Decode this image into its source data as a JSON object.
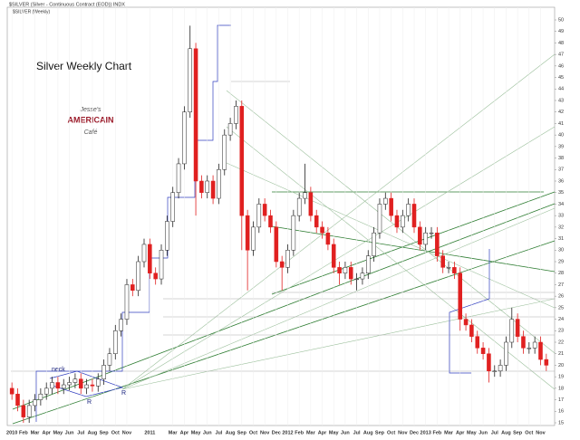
{
  "chart_data": {
    "type": "candlestick",
    "title": "$SILVER (Silver - Continuous Contract (EOD)) INDX",
    "subtitle": "$SILVER (Weekly)",
    "annotations": [
      "Silver Weekly Chart",
      "neck",
      "R",
      "R",
      "Jesse's",
      "AMERICAIN",
      "Café"
    ],
    "categories": [
      "2010",
      null,
      "Feb",
      null,
      "Mar",
      null,
      "Apr",
      null,
      "May",
      null,
      "Jun",
      null,
      "Jul",
      null,
      "Aug",
      null,
      "Sep",
      null,
      "Oct",
      null,
      "Nov",
      null,
      null,
      null,
      "2011",
      null,
      null,
      null,
      "Mar",
      null,
      "Apr",
      null,
      "May",
      null,
      "Jun",
      null,
      "Jul",
      null,
      "Aug",
      null,
      "Sep",
      null,
      "Oct",
      null,
      "Nov",
      null,
      "Dec",
      null,
      "2012",
      null,
      "Feb",
      null,
      "Mar",
      null,
      "Apr",
      null,
      "May",
      null,
      "Jun",
      null,
      "Jul",
      null,
      "Aug",
      null,
      "Sep",
      null,
      "Oct",
      null,
      "Nov",
      null,
      "Dec",
      null,
      "2013",
      null,
      "Feb",
      null,
      "Mar",
      null,
      "Apr",
      null,
      "May",
      null,
      "Jun",
      null,
      "Jul",
      null,
      "Aug",
      null,
      "Sep",
      null,
      "Oct",
      null,
      "Nov",
      null
    ],
    "open": [
      18,
      17.5,
      16.5,
      15.5,
      16.5,
      17,
      17.5,
      18,
      18.5,
      18,
      18.3,
      18.5,
      18.8,
      18,
      18.3,
      18.2,
      18.8,
      20,
      21,
      23,
      24,
      27,
      26.5,
      29,
      30.5,
      28,
      27.5,
      30,
      32.5,
      35,
      37.5,
      42,
      47.5,
      36,
      35,
      36,
      34.5,
      37,
      40,
      41,
      42.5,
      33,
      30,
      32,
      34,
      33,
      32,
      29,
      28.5,
      30,
      33,
      34.5,
      35,
      33,
      32,
      31.5,
      30.5,
      28.5,
      28,
      28.5,
      27.5,
      27.5,
      28,
      29.5,
      31.5,
      34,
      34.5,
      33,
      32,
      33,
      34,
      32,
      30.5,
      31.5,
      31.5,
      29.5,
      28.5,
      28.5,
      28,
      24,
      23.5,
      22.5,
      21.5,
      21,
      19.5,
      19.5,
      20,
      22,
      24,
      22.5,
      21.5,
      21.5,
      22,
      20.5
    ],
    "high": [
      18.5,
      18,
      17,
      17,
      17.5,
      18,
      18.5,
      19,
      19,
      18.8,
      19,
      19.3,
      19.3,
      18.8,
      18.8,
      19.3,
      20.5,
      21.5,
      23.5,
      24.5,
      27.5,
      27.5,
      29.5,
      31,
      31,
      28.5,
      30.5,
      33,
      35.5,
      38,
      42.5,
      49.5,
      48,
      36.5,
      36.5,
      36.5,
      37.5,
      40.5,
      41.5,
      43,
      43,
      33.5,
      32.5,
      34.5,
      34.5,
      33.5,
      32.5,
      29.5,
      30.5,
      33.5,
      35,
      37.5,
      35.5,
      33.5,
      32.5,
      32,
      31,
      29,
      29,
      29,
      28,
      28.5,
      30,
      32,
      34.5,
      35,
      35,
      33.5,
      33.5,
      34.5,
      34.5,
      32.5,
      32,
      32,
      32,
      30,
      29,
      29,
      28.5,
      24.5,
      24,
      23,
      22,
      21.5,
      20,
      20.5,
      22.5,
      25,
      24.5,
      23,
      22,
      22.5,
      22.5,
      21
    ],
    "low": [
      17,
      16,
      15,
      15,
      16,
      16.5,
      17,
      17.5,
      17.5,
      17.5,
      17.8,
      18,
      17.5,
      17.5,
      17.7,
      17.7,
      18.3,
      19.5,
      20.5,
      22.5,
      23.5,
      26,
      26,
      28.5,
      27.5,
      27,
      27,
      29.5,
      32,
      34.5,
      37,
      41.5,
      33,
      34.5,
      34.5,
      34,
      34,
      36.5,
      39.5,
      40.5,
      30,
      26.5,
      29.5,
      31.5,
      32.5,
      31.5,
      28.5,
      26.5,
      28,
      29.5,
      32.5,
      34,
      32.5,
      31.5,
      31,
      30,
      28,
      27,
      27.5,
      27,
      26.5,
      27,
      27.5,
      29,
      31,
      33.5,
      32.5,
      31.5,
      31.5,
      32.5,
      31.5,
      30,
      30,
      31,
      29,
      28,
      28,
      27.5,
      23,
      23,
      22,
      21,
      20.5,
      18.5,
      19,
      19,
      19.5,
      21.5,
      22,
      21,
      21,
      21,
      20,
      19.5
    ],
    "close": [
      17.5,
      16.5,
      15.5,
      16.5,
      17,
      17.5,
      18,
      18.5,
      18,
      18.3,
      18.5,
      18.8,
      18,
      18.3,
      18.2,
      18.8,
      20,
      21,
      23,
      24,
      27,
      26.5,
      29,
      30.5,
      28,
      27.5,
      30,
      32.5,
      35,
      37.5,
      42,
      47.5,
      36,
      35,
      36,
      34.5,
      37,
      40,
      41,
      42.5,
      33,
      30,
      32,
      34,
      33,
      32,
      29,
      28.5,
      30,
      33,
      34.5,
      35,
      33,
      32,
      31.5,
      30.5,
      28.5,
      28,
      28.5,
      27.5,
      27.5,
      28,
      29.5,
      31.5,
      34,
      34.5,
      33,
      32,
      33,
      34,
      32,
      30.5,
      31.5,
      31.5,
      29.5,
      28.5,
      28.5,
      28,
      24,
      23.5,
      22.5,
      21.5,
      21,
      19.5,
      19.5,
      20,
      22,
      24,
      22.5,
      21.5,
      21.5,
      22,
      20.5,
      20
    ],
    "up_color": "#ffffff",
    "down_color": "#e02020",
    "ylim": [
      15,
      50
    ],
    "yticks": [
      15,
      16,
      17,
      18,
      19,
      20,
      21,
      22,
      23,
      24,
      25,
      26,
      27,
      28,
      29,
      30,
      31,
      32,
      33,
      34,
      35,
      36,
      37,
      38,
      39,
      40,
      41,
      42,
      43,
      44,
      45,
      46,
      47,
      48,
      49,
      50
    ],
    "grid": true
  }
}
